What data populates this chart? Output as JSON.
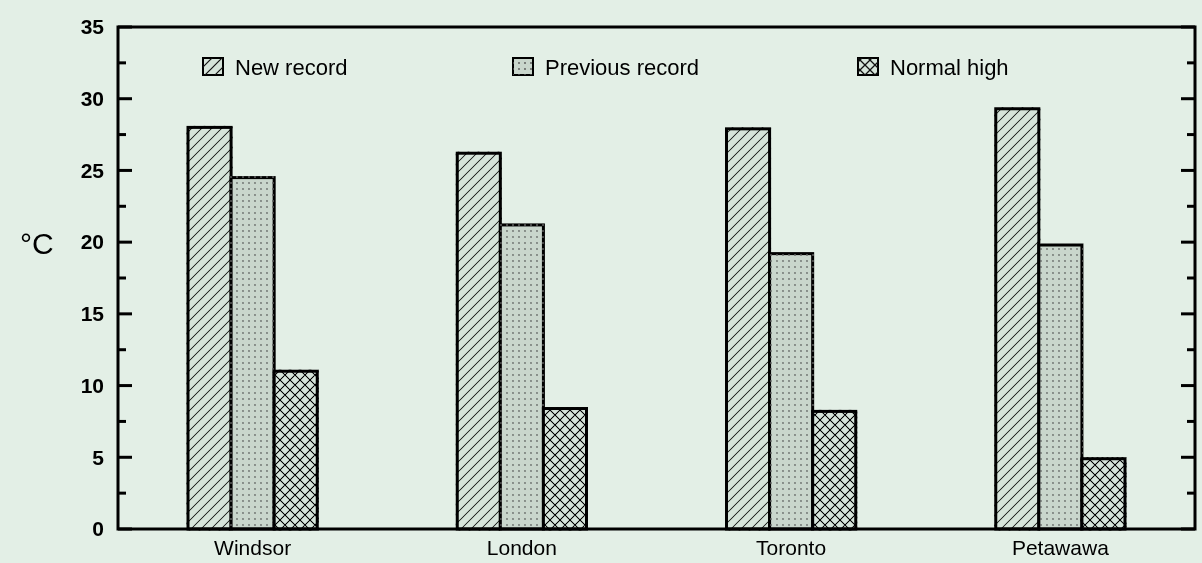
{
  "chart_data": {
    "type": "bar",
    "ylabel": "°C",
    "categories": [
      "Windsor",
      "London",
      "Toronto",
      "Petawawa"
    ],
    "series": [
      {
        "name": "New record",
        "color": "#d6e4da",
        "values": [
          28,
          26.2,
          27.9,
          29.3
        ]
      },
      {
        "name": "Previous record",
        "color": "#c9d6cc",
        "values": [
          24.5,
          21.2,
          19.2,
          19.8
        ]
      },
      {
        "name": "Normal high",
        "color": "#d6e4da",
        "values": [
          11,
          8.4,
          8.2,
          4.9
        ]
      }
    ],
    "ylim": [
      0,
      35
    ],
    "yticks": [
      0,
      {
        "value": 2.5,
        "label": null
      },
      5,
      {
        "value": 7.5,
        "label": null
      },
      10,
      {
        "value": 12.5,
        "label": null
      },
      15,
      {
        "value": 17.5,
        "label": null
      },
      20,
      {
        "value": 22.5,
        "label": null
      },
      25,
      {
        "value": 27.5,
        "label": null
      },
      30,
      {
        "value": 32.5,
        "label": null
      },
      35
    ],
    "legend": "top left",
    "grid": false
  }
}
